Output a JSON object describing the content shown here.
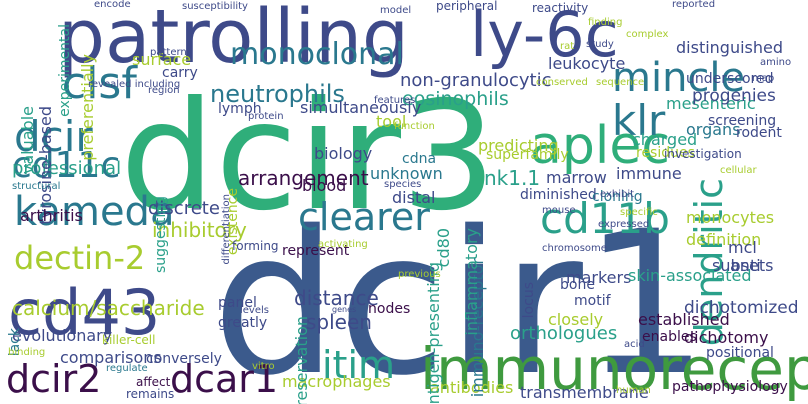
{
  "words": [
    {
      "text": "dcir1",
      "color": "#3b5a8c"
    },
    {
      "text": "dcir3",
      "color": "#2fae7a"
    },
    {
      "text": "patrolling",
      "color": "#3e4a89"
    },
    {
      "text": "ly-6c",
      "color": "#3e4a89"
    },
    {
      "text": "immunoreceptor",
      "color": "#3f9a3f"
    },
    {
      "text": "cd43",
      "color": "#3e4a89"
    },
    {
      "text": "aplec",
      "color": "#2fae7a"
    },
    {
      "text": "dcir2",
      "color": "#3b0f4a"
    },
    {
      "text": "dcar1",
      "color": "#3b0f4a"
    },
    {
      "text": "clsf",
      "color": "#2a788e"
    },
    {
      "text": "mincle",
      "color": "#2a788e"
    },
    {
      "text": "kameda",
      "color": "#2a788e"
    },
    {
      "text": "clearer",
      "color": "#2a788e"
    },
    {
      "text": "dectin-2",
      "color": "#a8cc2f"
    },
    {
      "text": "dcir",
      "color": "#2a788e"
    },
    {
      "text": "cd11c",
      "color": "#2a788e"
    },
    {
      "text": "klr",
      "color": "#2a788e"
    },
    {
      "text": "dendritic",
      "color": "#2aa08a"
    },
    {
      "text": "cd11b",
      "color": "#2aa08a"
    },
    {
      "text": "itim",
      "color": "#2aa08a"
    },
    {
      "text": "monoclonal",
      "color": "#2a788e"
    },
    {
      "text": "neutrophils",
      "color": "#2a788e"
    },
    {
      "text": "calcium/saccharide",
      "color": "#a8cc2f"
    },
    {
      "text": "professional",
      "color": "#2aa08a"
    },
    {
      "text": "arrangement",
      "color": "#3b0f4a"
    },
    {
      "text": "orthologues",
      "color": "#2aa08a"
    },
    {
      "text": "macrophages",
      "color": "#a8cc2f"
    },
    {
      "text": "dichotomized",
      "color": "#3e4a89"
    },
    {
      "text": "distance",
      "color": "#3e4a89"
    },
    {
      "text": "spleen",
      "color": "#3e4a89"
    },
    {
      "text": "non-granulocytic",
      "color": "#3e4a89"
    },
    {
      "text": "eosinophils",
      "color": "#2aa08a"
    },
    {
      "text": "leukocyte",
      "color": "#3e4a89"
    },
    {
      "text": "evolutionary",
      "color": "#3e4a89"
    },
    {
      "text": "inhibitory",
      "color": "#a8cc2f"
    },
    {
      "text": "antibodies",
      "color": "#a8cc2f"
    },
    {
      "text": "transmembrane",
      "color": "#3e4a89"
    },
    {
      "text": "pathophysiology",
      "color": "#3b0f4a"
    },
    {
      "text": "dichotomy",
      "color": "#3b0f4a"
    },
    {
      "text": "preservation",
      "color": "#2aa08a"
    },
    {
      "text": "antigen-presenting",
      "color": "#2aa08a"
    },
    {
      "text": "immuno-receptor",
      "color": "#2a788e"
    },
    {
      "text": "definition",
      "color": "#a8cc2f"
    },
    {
      "text": "monocytes",
      "color": "#a8cc2f"
    },
    {
      "text": "mesenteric",
      "color": "#2aa08a"
    },
    {
      "text": "organs",
      "color": "#2a788e"
    },
    {
      "text": "progenies",
      "color": "#3e4a89"
    },
    {
      "text": "underscored",
      "color": "#3e4a89"
    },
    {
      "text": "distinguished",
      "color": "#3e4a89"
    },
    {
      "text": "charged",
      "color": "#2aa08a"
    },
    {
      "text": "predicting",
      "color": "#a8cc2f"
    },
    {
      "text": "tool",
      "color": "#a8cc2f"
    },
    {
      "text": "biology",
      "color": "#3e4a89"
    },
    {
      "text": "blood",
      "color": "#3b0f4a"
    },
    {
      "text": "marrow",
      "color": "#3e4a89"
    },
    {
      "text": "nk1.1",
      "color": "#2aa08a"
    },
    {
      "text": "superfamily",
      "color": "#a8cc2f"
    },
    {
      "text": "surface",
      "color": "#a8cc2f"
    },
    {
      "text": "carry",
      "color": "#3e4a89"
    },
    {
      "text": "valuable",
      "color": "#2aa08a"
    },
    {
      "text": "tyrosine-based",
      "color": "#3e4a89"
    },
    {
      "text": "experimental",
      "color": "#2aa08a"
    },
    {
      "text": "preferentially",
      "color": "#a8cc2f"
    },
    {
      "text": "arthritis",
      "color": "#3b0f4a"
    },
    {
      "text": "discrete",
      "color": "#3e4a89"
    },
    {
      "text": "comparisons",
      "color": "#3e4a89"
    },
    {
      "text": "simultaneously",
      "color": "#3e4a89"
    },
    {
      "text": "anti",
      "color": "#3e4a89"
    },
    {
      "text": "mcl",
      "color": "#3e4a89"
    },
    {
      "text": "cd80",
      "color": "#2aa08a"
    },
    {
      "text": "inflammatory",
      "color": "#2aa08a"
    },
    {
      "text": "closely",
      "color": "#a8cc2f"
    },
    {
      "text": "markers",
      "color": "#3e4a89"
    },
    {
      "text": "subsets",
      "color": "#3e4a89"
    },
    {
      "text": "skin-associated",
      "color": "#2aa08a"
    },
    {
      "text": "established",
      "color": "#3b0f4a"
    },
    {
      "text": "enables",
      "color": "#3b0f4a"
    },
    {
      "text": "conversely",
      "color": "#3e4a89"
    },
    {
      "text": "panel",
      "color": "#3e4a89"
    },
    {
      "text": "greatly",
      "color": "#3e4a89"
    },
    {
      "text": "nodes",
      "color": "#3b0f4a"
    },
    {
      "text": "represent",
      "color": "#3b0f4a"
    },
    {
      "text": "existence",
      "color": "#a8cc2f"
    },
    {
      "text": "cdna",
      "color": "#2a788e"
    },
    {
      "text": "unknown",
      "color": "#2a788e"
    },
    {
      "text": "distal",
      "color": "#3e4a89"
    },
    {
      "text": "diminished",
      "color": "#3e4a89"
    },
    {
      "text": "cloning",
      "color": "#2a788e"
    },
    {
      "text": "immune",
      "color": "#3e4a89"
    },
    {
      "text": "rodent",
      "color": "#3e4a89"
    },
    {
      "text": "residues",
      "color": "#a8cc2f"
    },
    {
      "text": "screening",
      "color": "#3e4a89"
    },
    {
      "text": "bone",
      "color": "#3e4a89"
    },
    {
      "text": "motif",
      "color": "#3e4a89"
    },
    {
      "text": "positional",
      "color": "#3e4a89"
    },
    {
      "text": "lymph",
      "color": "#3e4a89"
    },
    {
      "text": "suggesting",
      "color": "#2aa08a"
    },
    {
      "text": "structural",
      "color": "#2a788e"
    },
    {
      "text": "lack",
      "color": "#2a788e"
    },
    {
      "text": "killer-cell",
      "color": "#a8cc2f"
    },
    {
      "text": "affect",
      "color": "#3b0f4a"
    },
    {
      "text": "remains",
      "color": "#3e4a89"
    },
    {
      "text": "regulate",
      "color": "#2a788e"
    },
    {
      "text": "binding",
      "color": "#a8cc2f"
    },
    {
      "text": "vitro",
      "color": "#a8cc2f"
    },
    {
      "text": "levels",
      "color": "#3e4a89"
    },
    {
      "text": "genes",
      "color": "#3e4a89"
    },
    {
      "text": "previous",
      "color": "#a8cc2f"
    },
    {
      "text": "locus",
      "color": "#3e4a89"
    },
    {
      "text": "acid",
      "color": "#3e4a89"
    },
    {
      "text": "human",
      "color": "#a8cc2f"
    },
    {
      "text": "chromosome",
      "color": "#3e4a89"
    },
    {
      "text": "activating",
      "color": "#a8cc2f"
    },
    {
      "text": "forming",
      "color": "#3e4a89"
    },
    {
      "text": "differentiation",
      "color": "#3e4a89"
    },
    {
      "text": "features",
      "color": "#3e4a89"
    },
    {
      "text": "species",
      "color": "#3e4a89"
    },
    {
      "text": "function",
      "color": "#a8cc2f"
    },
    {
      "text": "protein",
      "color": "#3e4a89"
    },
    {
      "text": "region",
      "color": "#3e4a89"
    },
    {
      "text": "patterns",
      "color": "#3e4a89"
    },
    {
      "text": "revealed including",
      "color": "#3e4a89"
    },
    {
      "text": "encode",
      "color": "#3e4a89"
    },
    {
      "text": "susceptibility",
      "color": "#3e4a89"
    },
    {
      "text": "model",
      "color": "#3e4a89"
    },
    {
      "text": "peripheral",
      "color": "#3e4a89"
    },
    {
      "text": "reactivity",
      "color": "#3e4a89"
    },
    {
      "text": "reported",
      "color": "#3e4a89"
    },
    {
      "text": "finding",
      "color": "#a8cc2f"
    },
    {
      "text": "complex",
      "color": "#a8cc2f"
    },
    {
      "text": "rat",
      "color": "#a8cc2f"
    },
    {
      "text": "study",
      "color": "#3e4a89"
    },
    {
      "text": "amino",
      "color": "#3e4a89"
    },
    {
      "text": "map",
      "color": "#3e4a89"
    },
    {
      "text": "sequence",
      "color": "#a8cc2f"
    },
    {
      "text": "conserved",
      "color": "#a8cc2f"
    },
    {
      "text": "investigation",
      "color": "#3e4a89"
    },
    {
      "text": "cellular",
      "color": "#a8cc2f"
    },
    {
      "text": "specific",
      "color": "#a8cc2f"
    },
    {
      "text": "exhibit",
      "color": "#3e4a89"
    },
    {
      "text": "mouse",
      "color": "#3e4a89"
    },
    {
      "text": "expressed",
      "color": "#3e4a89"
    }
  ]
}
